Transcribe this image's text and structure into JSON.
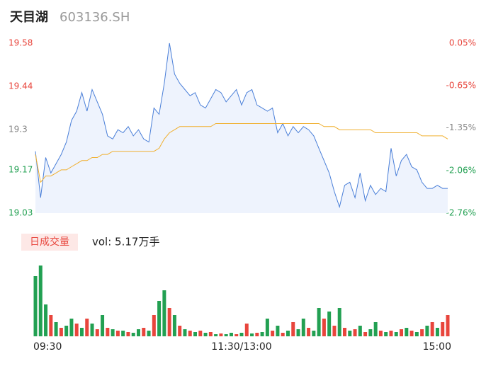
{
  "header": {
    "title": "天目湖",
    "code": "603136.SH"
  },
  "chart_data": {
    "type": "intraday",
    "ylim": [
      19.03,
      19.58
    ],
    "yticks": [
      19.58,
      19.44,
      19.3,
      19.17,
      19.03
    ],
    "ytick_colors": [
      "#e8453c",
      "#e8453c",
      "#888888",
      "#22a052",
      "#22a052"
    ],
    "y2lim": [
      -2.76,
      0.05
    ],
    "y2ticks": [
      {
        "value": 0.05,
        "label": "0.05%"
      },
      {
        "value": -0.65,
        "label": "-0.65%"
      },
      {
        "value": -1.35,
        "label": "-1.35%"
      },
      {
        "value": -2.06,
        "label": "-2.06%"
      },
      {
        "value": -2.76,
        "label": "-2.76%"
      }
    ],
    "xlim": [
      0,
      80
    ],
    "xticks": [
      {
        "value": 0,
        "label": "09:30"
      },
      {
        "value": 40,
        "label": "11:30/13:00"
      },
      {
        "value": 80,
        "label": "15:00"
      }
    ],
    "series": [
      {
        "name": "price",
        "color": "#4a7fd8",
        "values": [
          19.23,
          19.08,
          19.21,
          19.16,
          19.19,
          19.22,
          19.26,
          19.33,
          19.36,
          19.42,
          19.36,
          19.43,
          19.39,
          19.35,
          19.28,
          19.27,
          19.3,
          19.29,
          19.31,
          19.28,
          19.3,
          19.27,
          19.26,
          19.37,
          19.35,
          19.45,
          19.58,
          19.48,
          19.45,
          19.43,
          19.41,
          19.42,
          19.38,
          19.37,
          19.4,
          19.43,
          19.42,
          19.39,
          19.41,
          19.43,
          19.38,
          19.42,
          19.43,
          19.38,
          19.37,
          19.36,
          19.37,
          19.29,
          19.32,
          19.28,
          19.31,
          19.29,
          19.31,
          19.3,
          19.28,
          19.24,
          19.2,
          19.16,
          19.1,
          19.05,
          19.12,
          19.13,
          19.08,
          19.16,
          19.07,
          19.12,
          19.09,
          19.11,
          19.1,
          19.24,
          19.15,
          19.2,
          19.22,
          19.18,
          19.17,
          19.13,
          19.11,
          19.11,
          19.12,
          19.11,
          19.11
        ]
      },
      {
        "name": "average",
        "color": "#f0b030",
        "values": [
          19.22,
          19.13,
          19.15,
          19.15,
          19.16,
          19.17,
          19.17,
          19.18,
          19.19,
          19.2,
          19.2,
          19.21,
          19.21,
          19.22,
          19.22,
          19.23,
          19.23,
          19.23,
          19.23,
          19.23,
          19.23,
          19.23,
          19.23,
          19.23,
          19.24,
          19.27,
          19.29,
          19.3,
          19.31,
          19.31,
          19.31,
          19.31,
          19.31,
          19.31,
          19.31,
          19.32,
          19.32,
          19.32,
          19.32,
          19.32,
          19.32,
          19.32,
          19.32,
          19.32,
          19.32,
          19.32,
          19.32,
          19.32,
          19.32,
          19.32,
          19.32,
          19.32,
          19.32,
          19.32,
          19.32,
          19.32,
          19.31,
          19.31,
          19.31,
          19.3,
          19.3,
          19.3,
          19.3,
          19.3,
          19.3,
          19.3,
          19.29,
          19.29,
          19.29,
          19.29,
          19.29,
          19.29,
          19.29,
          19.29,
          19.29,
          19.28,
          19.28,
          19.28,
          19.28,
          19.28,
          19.27
        ]
      }
    ],
    "volume": {
      "label": "日成交量",
      "text": "vol: 5.17万手",
      "up_color": "#e8453c",
      "down_color": "#22a052",
      "values": [
        85,
        100,
        45,
        30,
        20,
        12,
        15,
        25,
        18,
        12,
        25,
        18,
        10,
        30,
        12,
        10,
        8,
        8,
        6,
        5,
        10,
        12,
        8,
        30,
        50,
        65,
        40,
        30,
        15,
        10,
        8,
        6,
        8,
        5,
        6,
        3,
        4,
        3,
        5,
        3,
        5,
        18,
        4,
        5,
        6,
        25,
        8,
        15,
        5,
        8,
        20,
        10,
        25,
        12,
        8,
        40,
        25,
        35,
        15,
        40,
        12,
        8,
        10,
        15,
        6,
        10,
        20,
        8,
        6,
        8,
        6,
        10,
        12,
        8,
        6,
        10,
        15,
        20,
        12,
        20,
        30
      ],
      "up": [
        false,
        false,
        false,
        true,
        false,
        true,
        false,
        false,
        true,
        false,
        true,
        false,
        true,
        false,
        true,
        false,
        true,
        false,
        true,
        false,
        false,
        true,
        false,
        true,
        false,
        false,
        true,
        false,
        true,
        false,
        true,
        false,
        true,
        false,
        true,
        false,
        true,
        false,
        false,
        true,
        false,
        true,
        false,
        true,
        false,
        false,
        true,
        false,
        true,
        false,
        true,
        false,
        false,
        true,
        false,
        false,
        true,
        false,
        true,
        false,
        true,
        false,
        true,
        false,
        true,
        false,
        false,
        true,
        false,
        true,
        false,
        true,
        false,
        true,
        false,
        true,
        false,
        true,
        false,
        true,
        true
      ]
    }
  }
}
